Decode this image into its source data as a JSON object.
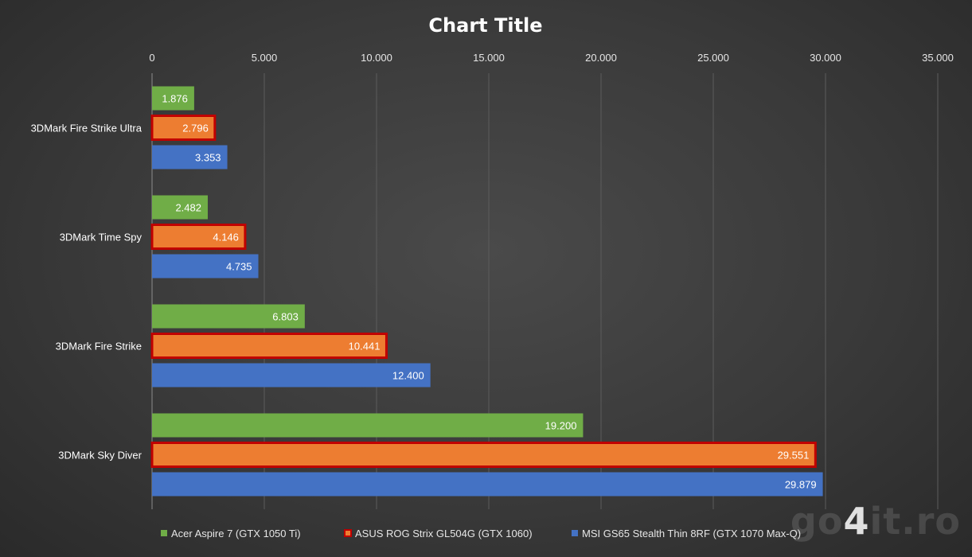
{
  "chart_data": {
    "type": "bar",
    "orientation": "horizontal",
    "title": "Chart Title",
    "categories": [
      "3DMark Fire Strike Ultra",
      "3DMark Time Spy",
      "3DMark Fire Strike",
      "3DMark Sky Diver"
    ],
    "series": [
      {
        "name": "Acer Aspire 7 (GTX 1050 Ti)",
        "color": "#70ad47",
        "highlight": false,
        "values": [
          1876,
          2482,
          6803,
          19200
        ],
        "labels": [
          "1.876",
          "2.482",
          "6.803",
          "19.200"
        ]
      },
      {
        "name": "ASUS ROG Strix GL504G (GTX 1060)",
        "color": "#ed7d31",
        "highlight": true,
        "outline": "#c00000",
        "values": [
          2796,
          4146,
          10441,
          29551
        ],
        "labels": [
          "2.796",
          "4.146",
          "10.441",
          "29.551"
        ]
      },
      {
        "name": "MSI GS65 Stealth Thin 8RF (GTX 1070 Max-Q)",
        "color": "#4472c4",
        "highlight": false,
        "values": [
          3353,
          4735,
          12400,
          29879
        ],
        "labels": [
          "3.353",
          "4.735",
          "12.400",
          "29.879"
        ]
      }
    ],
    "xlim": [
      0,
      35000
    ],
    "ticks": [
      0,
      5000,
      10000,
      15000,
      20000,
      25000,
      30000,
      35000
    ],
    "tick_labels": [
      "0",
      "5.000",
      "10.000",
      "15.000",
      "20.000",
      "25.000",
      "30.000",
      "35.000"
    ],
    "grid": true,
    "legend_position": "bottom"
  },
  "watermark": {
    "text_before": "go",
    "digit": "4",
    "text_after": "it.ro"
  }
}
